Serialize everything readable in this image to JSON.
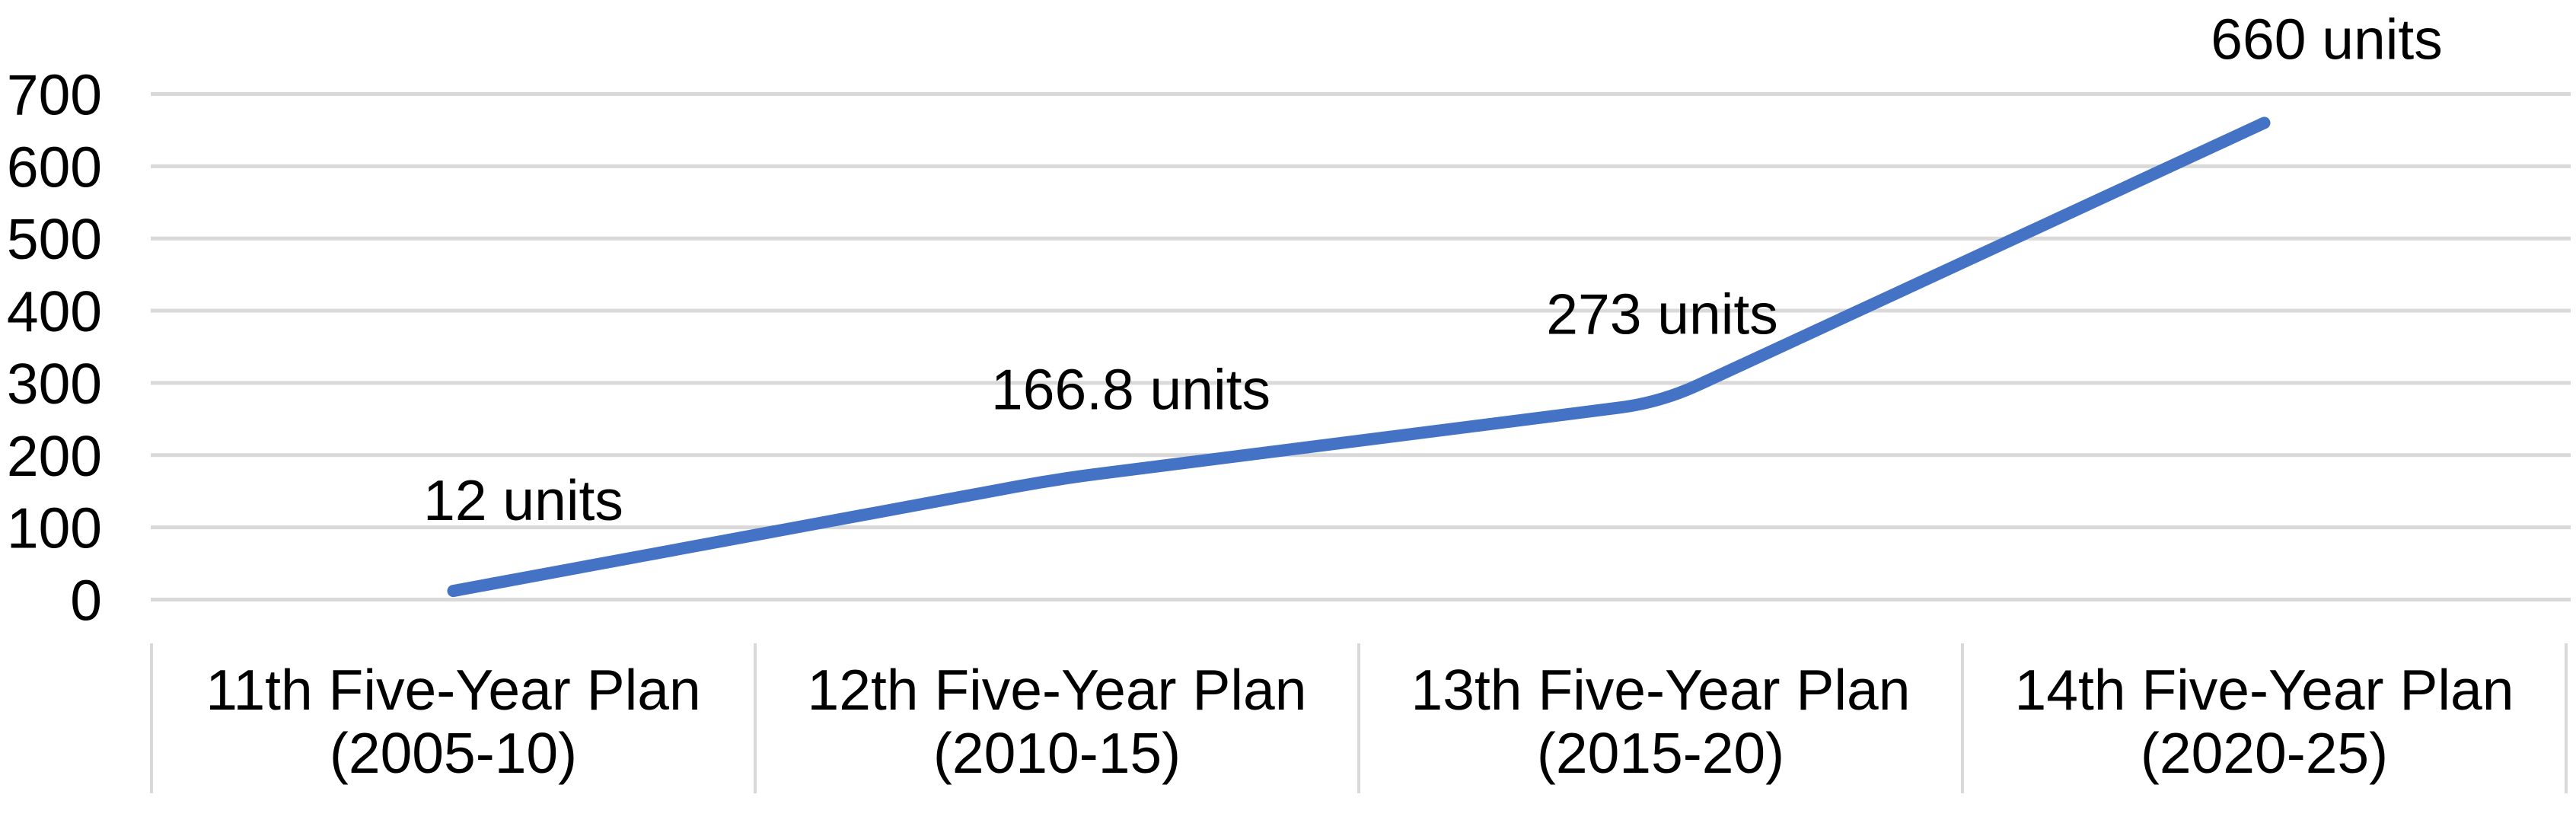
{
  "chart_data": {
    "type": "line",
    "title": "",
    "categories": [
      [
        "11th Five-Year Plan",
        "(2005-10)"
      ],
      [
        "12th Five-Year Plan",
        "(2010-15)"
      ],
      [
        "13th Five-Year Plan",
        "(2015-20)"
      ],
      [
        "14th Five-Year Plan",
        "(2020-25)"
      ]
    ],
    "series": [
      {
        "name": "units",
        "values": [
          12,
          166.8,
          273,
          660
        ]
      }
    ],
    "data_labels": [
      "12 units",
      "166.8 units",
      "273 units",
      "660 units"
    ],
    "yticks": [
      0,
      100,
      200,
      300,
      400,
      500,
      600,
      700
    ],
    "ylim": [
      0,
      700
    ],
    "grid": true,
    "legend_position": "none",
    "line_color": "#4472C4",
    "gridline_color": "#D9D9D9",
    "text_color": "#000000",
    "background_color": "#FFFFFF"
  }
}
